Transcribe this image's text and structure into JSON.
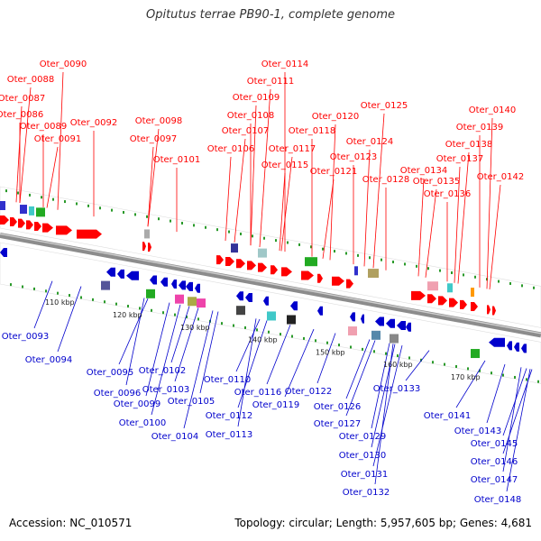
{
  "title": "Opitutus terrae PB90-1, complete genome",
  "footer": {
    "accession": "Accession: NC_010571",
    "summary": "Topology: circular; Length: 5,957,605 bp; Genes: 4,681"
  },
  "colors": {
    "forward": "#ff0000",
    "reverse": "#0000cc",
    "backbone": "#9a9a9a",
    "tick": "#2a9a2a"
  },
  "scale": [
    "110 kbp",
    "120 kbp",
    "130 kbp",
    "140 kbp",
    "150 kbp",
    "160 kbp",
    "170 kbp"
  ],
  "forward_genes": [
    "Oter_0086",
    "Oter_0087",
    "Oter_0088",
    "Oter_0089",
    "Oter_0090",
    "Oter_0091",
    "Oter_0092",
    "Oter_0097",
    "Oter_0098",
    "Oter_0101",
    "Oter_0106",
    "Oter_0107",
    "Oter_0108",
    "Oter_0109",
    "Oter_0111",
    "Oter_0114",
    "Oter_0115",
    "Oter_0117",
    "Oter_0118",
    "Oter_0120",
    "Oter_0121",
    "Oter_0123",
    "Oter_0124",
    "Oter_0125",
    "Oter_0128",
    "Oter_0134",
    "Oter_0135",
    "Oter_0136",
    "Oter_0137",
    "Oter_0138",
    "Oter_0139",
    "Oter_0140",
    "Oter_0142"
  ],
  "reverse_genes": [
    "Oter_0093",
    "Oter_0094",
    "Oter_0095",
    "Oter_0096",
    "Oter_0099",
    "Oter_0100",
    "Oter_0102",
    "Oter_0103",
    "Oter_0104",
    "Oter_0105",
    "Oter_0110",
    "Oter_0112",
    "Oter_0113",
    "Oter_0116",
    "Oter_0119",
    "Oter_0122",
    "Oter_0126",
    "Oter_0127",
    "Oter_0129",
    "Oter_0130",
    "Oter_0131",
    "Oter_0132",
    "Oter_0133",
    "Oter_0141",
    "Oter_0143",
    "Oter_0145",
    "Oter_0146",
    "Oter_0147",
    "Oter_0148"
  ]
}
